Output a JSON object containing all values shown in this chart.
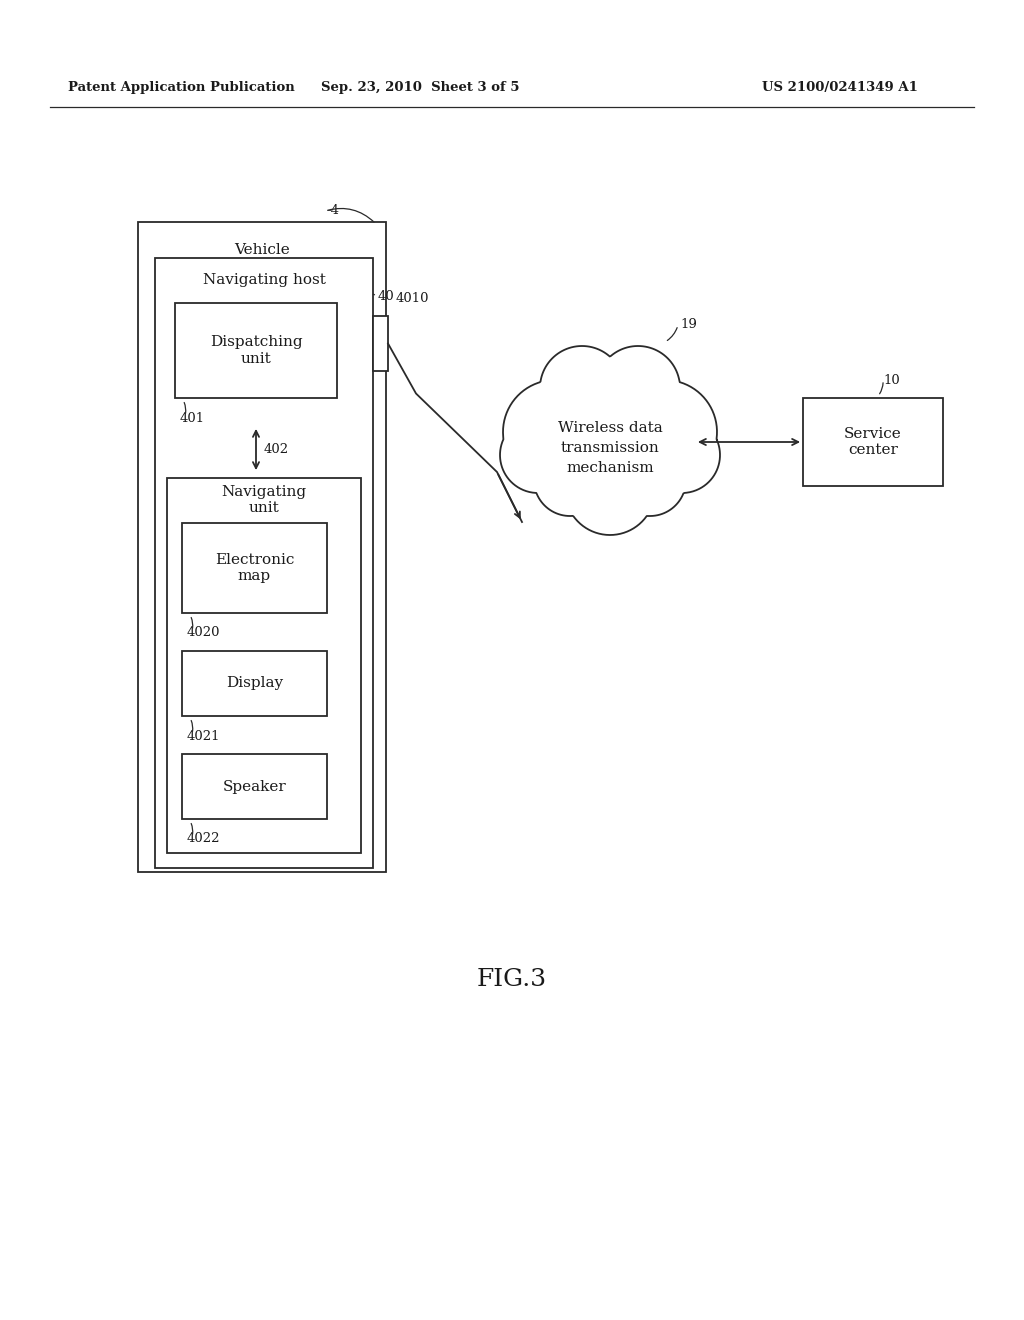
{
  "bg_color": "#ffffff",
  "header_left": "Patent Application Publication",
  "header_mid": "Sep. 23, 2010  Sheet 3 of 5",
  "header_right": "US 2100/0241349 A1",
  "fig_label": "FIG.3",
  "outer_box_label": "Vehicle",
  "outer_box_ref": "-4",
  "inner_box_label": "Navigating host",
  "inner_box_ref": "40",
  "dispatching_unit_label": "Dispatching\nunit",
  "dispatching_unit_ref": "401",
  "navigating_unit_label": "Navigating\nunit",
  "navigating_unit_ref": "402",
  "electronic_map_label": "Electronic\nmap",
  "electronic_map_ref": "4020",
  "display_label": "Display",
  "display_ref": "4021",
  "speaker_label": "Speaker",
  "speaker_ref": "4022",
  "connector_ref": "4010",
  "cloud_label": "Wireless data\ntransmission\nmechanism",
  "cloud_ref": "19",
  "service_center_label": "Service\ncenter",
  "service_center_ref": "10"
}
